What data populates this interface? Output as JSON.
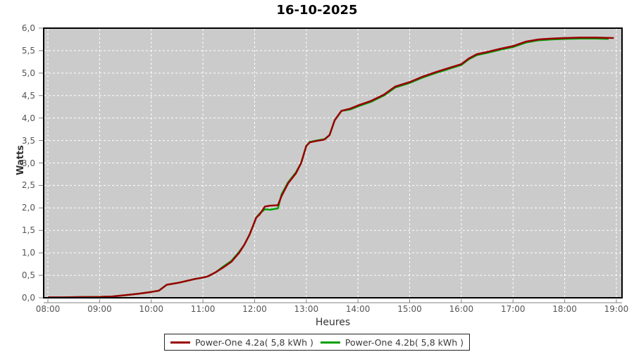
{
  "title": "16-10-2025",
  "axes": {
    "y_label": "Watts",
    "x_label": "Heures",
    "y_ticks": [
      {
        "v": 0.0,
        "label": "0,0"
      },
      {
        "v": 0.5,
        "label": "0,5"
      },
      {
        "v": 1.0,
        "label": "1,0"
      },
      {
        "v": 1.5,
        "label": "1,5"
      },
      {
        "v": 2.0,
        "label": "2,0"
      },
      {
        "v": 2.5,
        "label": "2,5"
      },
      {
        "v": 3.0,
        "label": "3,0"
      },
      {
        "v": 3.5,
        "label": "3,5"
      },
      {
        "v": 4.0,
        "label": "4,0"
      },
      {
        "v": 4.5,
        "label": "4,5"
      },
      {
        "v": 5.0,
        "label": "5,0"
      },
      {
        "v": 5.5,
        "label": "5,5"
      },
      {
        "v": 6.0,
        "label": "6,0"
      }
    ],
    "x_ticks": [
      {
        "h": 8,
        "label": "08:00"
      },
      {
        "h": 9,
        "label": "09:00"
      },
      {
        "h": 10,
        "label": "10:00"
      },
      {
        "h": 11,
        "label": "11:00"
      },
      {
        "h": 12,
        "label": "12:00"
      },
      {
        "h": 13,
        "label": "13:00"
      },
      {
        "h": 14,
        "label": "14:00"
      },
      {
        "h": 15,
        "label": "15:00"
      },
      {
        "h": 16,
        "label": "16:00"
      },
      {
        "h": 17,
        "label": "17:00"
      },
      {
        "h": 18,
        "label": "18:00"
      },
      {
        "h": 19,
        "label": "19:00"
      }
    ]
  },
  "legend": [
    {
      "label": "Power-One 4.2a( 5,8 kWh )",
      "color": "#990000"
    },
    {
      "label": "Power-One 4.2b( 5,8 kWh )",
      "color": "#00a000"
    }
  ],
  "colors": {
    "plot_bg": "#cbcbcb",
    "grid": "#ffffff",
    "plot_border": "#000000",
    "tick": "#808080",
    "series_a": "#990000",
    "series_b": "#00a000"
  },
  "chart_data": {
    "type": "line",
    "title": "16-10-2025",
    "xlabel": "Heures",
    "ylabel": "Watts",
    "xlim": [
      8,
      19
    ],
    "ylim": [
      0,
      6
    ],
    "x_unit": "decimal hours",
    "grid": true,
    "legend_position": "bottom",
    "series": [
      {
        "name": "Power-One 4.2a( 5,8 kWh )",
        "color": "#990000",
        "x": [
          8.0,
          8.3,
          8.6,
          9.0,
          9.25,
          9.5,
          9.75,
          10.0,
          10.15,
          10.3,
          10.55,
          10.85,
          11.0,
          11.1,
          11.25,
          11.4,
          11.55,
          11.7,
          11.8,
          11.9,
          11.97,
          12.03,
          12.1,
          12.2,
          12.3,
          12.45,
          12.52,
          12.65,
          12.8,
          12.9,
          13.0,
          13.07,
          13.2,
          13.35,
          13.45,
          13.55,
          13.68,
          13.85,
          14.0,
          14.25,
          14.5,
          14.72,
          15.0,
          15.25,
          15.5,
          15.75,
          16.0,
          16.15,
          16.3,
          16.5,
          16.75,
          17.0,
          17.25,
          17.5,
          17.75,
          18.0,
          18.3,
          18.6,
          18.95
        ],
        "y": [
          0.01,
          0.01,
          0.015,
          0.02,
          0.03,
          0.06,
          0.09,
          0.13,
          0.16,
          0.29,
          0.34,
          0.42,
          0.45,
          0.48,
          0.57,
          0.68,
          0.8,
          1.0,
          1.18,
          1.4,
          1.6,
          1.78,
          1.86,
          2.03,
          2.05,
          2.06,
          2.26,
          2.55,
          2.77,
          3.0,
          3.38,
          3.46,
          3.49,
          3.52,
          3.62,
          3.95,
          4.16,
          4.21,
          4.28,
          4.38,
          4.52,
          4.7,
          4.8,
          4.92,
          5.02,
          5.11,
          5.2,
          5.33,
          5.42,
          5.47,
          5.54,
          5.6,
          5.7,
          5.75,
          5.77,
          5.78,
          5.79,
          5.79,
          5.78
        ]
      },
      {
        "name": "Power-One 4.2b( 5,8 kWh )",
        "color": "#00a000",
        "x": [
          8.0,
          8.3,
          8.6,
          9.0,
          9.25,
          9.5,
          9.75,
          10.0,
          10.15,
          10.3,
          10.55,
          10.85,
          11.0,
          11.1,
          11.25,
          11.4,
          11.55,
          11.7,
          11.8,
          11.9,
          11.97,
          12.03,
          12.1,
          12.2,
          12.3,
          12.45,
          12.52,
          12.65,
          12.8,
          12.9,
          13.0,
          13.07,
          13.2,
          13.35,
          13.45,
          13.55,
          13.68,
          13.85,
          14.0,
          14.25,
          14.5,
          14.72,
          15.0,
          15.25,
          15.5,
          15.75,
          16.0,
          16.15,
          16.3,
          16.5,
          16.75,
          17.0,
          17.25,
          17.5,
          17.75,
          18.0,
          18.3,
          18.6,
          18.85
        ],
        "y": [
          0.01,
          0.01,
          0.015,
          0.02,
          0.03,
          0.06,
          0.09,
          0.13,
          0.16,
          0.29,
          0.34,
          0.42,
          0.45,
          0.48,
          0.57,
          0.7,
          0.82,
          1.02,
          1.18,
          1.4,
          1.6,
          1.78,
          1.88,
          1.97,
          1.96,
          1.99,
          2.3,
          2.57,
          2.79,
          3.0,
          3.38,
          3.47,
          3.5,
          3.53,
          3.62,
          3.95,
          4.16,
          4.19,
          4.26,
          4.36,
          4.5,
          4.68,
          4.78,
          4.9,
          5.0,
          5.09,
          5.18,
          5.31,
          5.4,
          5.45,
          5.52,
          5.58,
          5.68,
          5.73,
          5.75,
          5.76,
          5.77,
          5.77,
          5.76
        ]
      }
    ]
  }
}
